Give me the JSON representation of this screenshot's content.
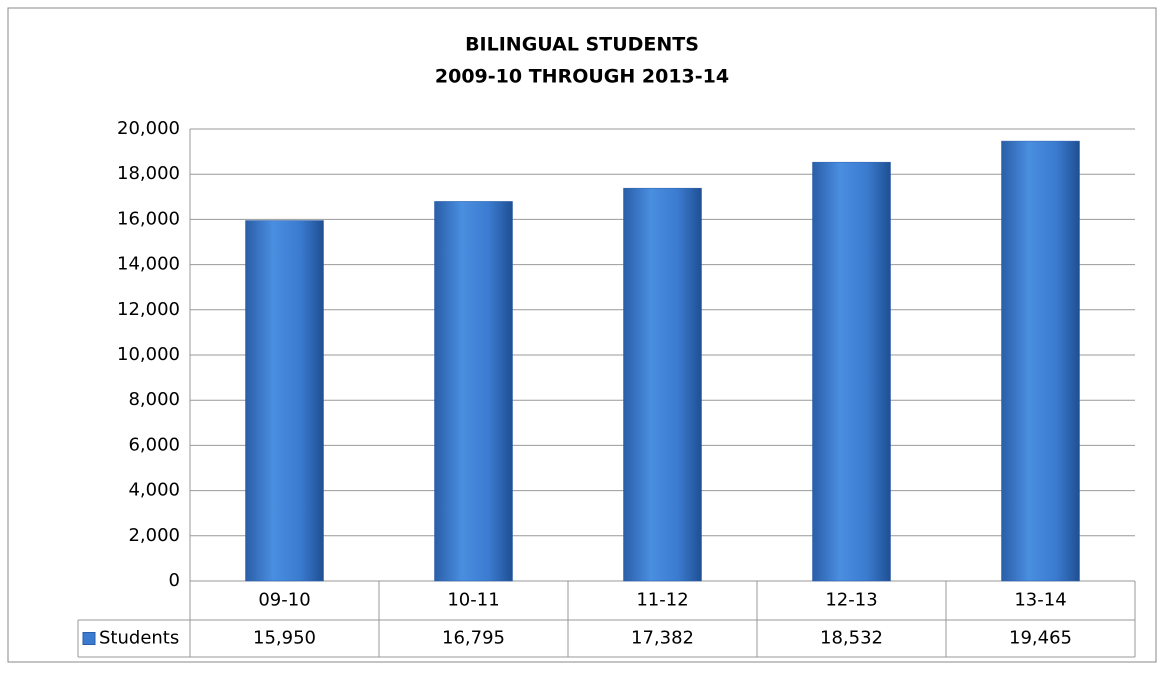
{
  "chart_data": {
    "type": "bar",
    "title": [
      "BILINGUAL STUDENTS",
      "2009-10 THROUGH 2013-14"
    ],
    "categories": [
      "09-10",
      "10-11",
      "11-12",
      "12-13",
      "13-14"
    ],
    "series": [
      {
        "name": "Students",
        "color": "#3b7bcf",
        "values": [
          15950,
          16795,
          17382,
          18532,
          19465
        ],
        "value_labels": [
          "15,950",
          "16,795",
          "17,382",
          "18,532",
          "19,465"
        ]
      }
    ],
    "ylim": [
      0,
      20000
    ],
    "yticks": [
      0,
      {
        "value": 2000,
        "label": "2,000"
      },
      {
        "value": 4000,
        "label": "4,000"
      },
      {
        "value": 6000,
        "label": "6,000"
      },
      {
        "value": 8000,
        "label": "8,000"
      },
      {
        "value": 10000,
        "label": "10,000"
      },
      {
        "value": 12000,
        "label": "12,000"
      },
      {
        "value": 14000,
        "label": "14,000"
      },
      {
        "value": 16000,
        "label": "16,000"
      },
      {
        "value": 18000,
        "label": "18,000"
      },
      {
        "value": 20000,
        "label": "20,000"
      }
    ],
    "grid": true
  }
}
